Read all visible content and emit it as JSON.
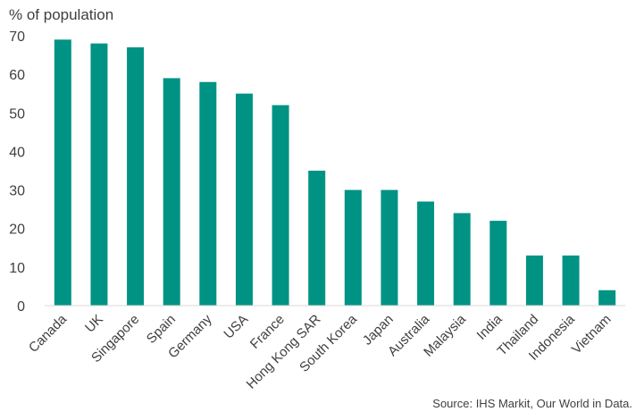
{
  "chart_data": {
    "type": "bar",
    "title": "",
    "xlabel": "",
    "ylabel": "% of population",
    "ylim": [
      0,
      70
    ],
    "yticks": [
      0,
      10,
      20,
      30,
      40,
      50,
      60,
      70
    ],
    "grid": false,
    "bar_color": "#009384",
    "categories": [
      "Canada",
      "UK",
      "Singapore",
      "Spain",
      "Germany",
      "USA",
      "France",
      "Hong Kong SAR",
      "South Korea",
      "Japan",
      "Australia",
      "Malaysia",
      "India",
      "Thailand",
      "Indonesia",
      "Vietnam"
    ],
    "values": [
      69,
      68,
      67,
      59,
      58,
      55,
      52,
      35,
      30,
      30,
      27,
      24,
      22,
      13,
      13,
      4
    ]
  },
  "source": "Source: IHS Markit, Our World in Data."
}
